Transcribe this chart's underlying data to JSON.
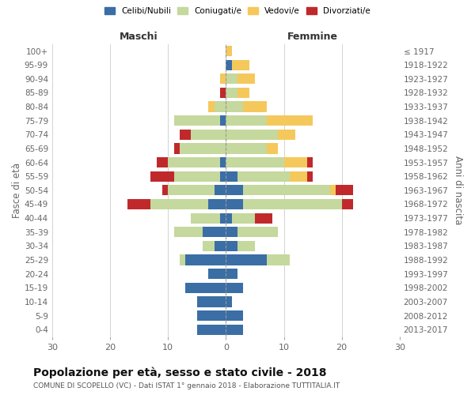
{
  "age_groups": [
    "0-4",
    "5-9",
    "10-14",
    "15-19",
    "20-24",
    "25-29",
    "30-34",
    "35-39",
    "40-44",
    "45-49",
    "50-54",
    "55-59",
    "60-64",
    "65-69",
    "70-74",
    "75-79",
    "80-84",
    "85-89",
    "90-94",
    "95-99",
    "100+"
  ],
  "birth_years": [
    "2013-2017",
    "2008-2012",
    "2003-2007",
    "1998-2002",
    "1993-1997",
    "1988-1992",
    "1983-1987",
    "1978-1982",
    "1973-1977",
    "1968-1972",
    "1963-1967",
    "1958-1962",
    "1953-1957",
    "1948-1952",
    "1943-1947",
    "1938-1942",
    "1933-1937",
    "1928-1932",
    "1923-1927",
    "1918-1922",
    "≤ 1917"
  ],
  "colors": {
    "celibi": "#3A6EA5",
    "coniugati": "#C5D89D",
    "vedovi": "#F5C85C",
    "divorziati": "#C0292B"
  },
  "male": {
    "celibi": [
      5,
      5,
      5,
      7,
      3,
      7,
      2,
      4,
      1,
      3,
      2,
      1,
      1,
      0,
      0,
      1,
      0,
      0,
      0,
      0,
      0
    ],
    "coniugati": [
      0,
      0,
      0,
      0,
      0,
      1,
      2,
      5,
      5,
      10,
      8,
      8,
      9,
      8,
      6,
      8,
      2,
      0,
      0,
      0,
      0
    ],
    "vedovi": [
      0,
      0,
      0,
      0,
      0,
      0,
      0,
      0,
      0,
      0,
      0,
      0,
      0,
      0,
      0,
      0,
      1,
      0,
      1,
      0,
      0
    ],
    "divorziati": [
      0,
      0,
      0,
      0,
      0,
      0,
      0,
      0,
      0,
      4,
      1,
      4,
      2,
      1,
      2,
      0,
      0,
      1,
      0,
      0,
      0
    ]
  },
  "female": {
    "celibi": [
      3,
      3,
      1,
      3,
      2,
      7,
      2,
      2,
      1,
      3,
      3,
      2,
      0,
      0,
      0,
      0,
      0,
      0,
      0,
      1,
      0
    ],
    "coniugati": [
      0,
      0,
      0,
      0,
      0,
      4,
      3,
      7,
      4,
      17,
      15,
      9,
      10,
      7,
      9,
      7,
      3,
      2,
      2,
      0,
      0
    ],
    "vedovi": [
      0,
      0,
      0,
      0,
      0,
      0,
      0,
      0,
      0,
      0,
      1,
      3,
      4,
      2,
      3,
      8,
      4,
      2,
      3,
      3,
      1
    ],
    "divorziati": [
      0,
      0,
      0,
      0,
      0,
      0,
      0,
      0,
      3,
      2,
      3,
      1,
      1,
      0,
      0,
      0,
      0,
      0,
      0,
      0,
      0
    ]
  },
  "title": "Popolazione per età, sesso e stato civile - 2018",
  "subtitle": "COMUNE DI SCOPELLO (VC) - Dati ISTAT 1° gennaio 2018 - Elaborazione TUTTITALIA.IT",
  "xlabel_left": "Maschi",
  "xlabel_right": "Femmine",
  "ylabel_left": "Fasce di età",
  "ylabel_right": "Anni di nascita",
  "xlim": 30,
  "legend_labels": [
    "Celibi/Nubili",
    "Coniugati/e",
    "Vedovi/e",
    "Divorziati/e"
  ],
  "background_color": "#ffffff"
}
